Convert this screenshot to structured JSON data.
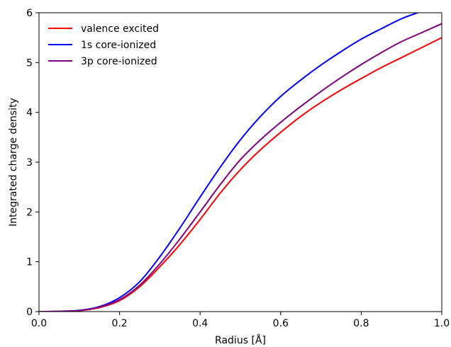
{
  "chart_data": {
    "type": "line",
    "title": "",
    "xlabel": "Radius [Å]",
    "ylabel": "Integrated charge density",
    "xlim": [
      0.0,
      1.0
    ],
    "ylim": [
      0,
      6
    ],
    "x_ticks": [
      "0.0",
      "0.2",
      "0.4",
      "0.6",
      "0.8",
      "1.0"
    ],
    "y_ticks": [
      "0",
      "1",
      "2",
      "3",
      "4",
      "5",
      "6"
    ],
    "grid": false,
    "legend_position": "top-left",
    "series": [
      {
        "name": "valence excited",
        "color": "#ff0000",
        "x": [
          0.0,
          0.05,
          0.1,
          0.15,
          0.2,
          0.25,
          0.3,
          0.35,
          0.4,
          0.45,
          0.5,
          0.55,
          0.6,
          0.65,
          0.7,
          0.75,
          0.8,
          0.85,
          0.9,
          0.95,
          1.0
        ],
        "y": [
          0.0,
          0.005,
          0.02,
          0.08,
          0.22,
          0.5,
          0.9,
          1.35,
          1.85,
          2.38,
          2.85,
          3.25,
          3.6,
          3.92,
          4.2,
          4.45,
          4.68,
          4.9,
          5.1,
          5.3,
          5.5
        ]
      },
      {
        "name": "1s core-ionized",
        "color": "#0000ff",
        "x": [
          0.0,
          0.05,
          0.1,
          0.15,
          0.2,
          0.25,
          0.3,
          0.35,
          0.4,
          0.45,
          0.5,
          0.55,
          0.6,
          0.65,
          0.7,
          0.75,
          0.8,
          0.85,
          0.9,
          0.94
        ],
        "y": [
          0.0,
          0.006,
          0.025,
          0.1,
          0.28,
          0.6,
          1.1,
          1.68,
          2.3,
          2.9,
          3.45,
          3.92,
          4.32,
          4.65,
          4.95,
          5.22,
          5.47,
          5.68,
          5.88,
          6.0
        ]
      },
      {
        "name": "3p core-ionized",
        "color": "#800080",
        "x": [
          0.0,
          0.05,
          0.1,
          0.15,
          0.2,
          0.25,
          0.3,
          0.35,
          0.4,
          0.45,
          0.5,
          0.55,
          0.6,
          0.65,
          0.7,
          0.75,
          0.8,
          0.85,
          0.9,
          0.95,
          1.0
        ],
        "y": [
          0.0,
          0.005,
          0.022,
          0.09,
          0.24,
          0.53,
          0.96,
          1.46,
          2.0,
          2.55,
          3.05,
          3.45,
          3.8,
          4.12,
          4.42,
          4.7,
          4.96,
          5.2,
          5.42,
          5.6,
          5.78
        ]
      }
    ]
  }
}
